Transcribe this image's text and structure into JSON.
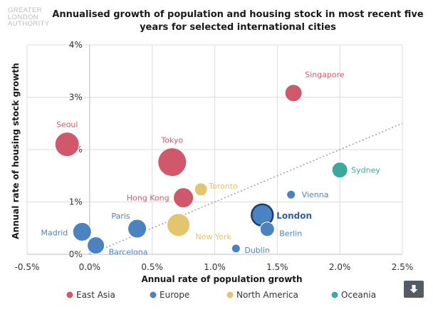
{
  "logo": [
    "GREATER",
    "LONDON",
    "AUTHORITY"
  ],
  "colors": {
    "East Asia": "#d0586b",
    "Europe": "#4b82c2",
    "North America": "#e2c56c",
    "Oceania": "#3aaa9b"
  },
  "chart_data": {
    "type": "scatter",
    "title": "Annualised growth of population and housing stock in most recent five years for selected international cities",
    "xlabel": "Annual rate of population growth",
    "ylabel": "Annual rate of housing stock growth",
    "xlim": [
      -0.5,
      2.5
    ],
    "ylim": [
      0,
      4
    ],
    "xticks": [
      "-0.5%",
      "0.0%",
      "0.5%",
      "1.0%",
      "1.5%",
      "2.0%",
      "2.5%"
    ],
    "yticks": [
      "0%",
      "1%",
      "2%",
      "3%",
      "4%"
    ],
    "grid": true,
    "legend": "bottom",
    "legend_entries": [
      "East Asia",
      "Europe",
      "North America",
      "Oceania"
    ],
    "trend_line": {
      "x": [
        0,
        2.5
      ],
      "y": [
        0,
        2.5
      ]
    },
    "points": [
      {
        "city": "Singapore",
        "x": 1.63,
        "y": 3.08,
        "region": "East Asia",
        "size": 12
      },
      {
        "city": "Seoul",
        "x": -0.18,
        "y": 2.1,
        "region": "East Asia",
        "size": 17
      },
      {
        "city": "Tokyo",
        "x": 0.66,
        "y": 1.76,
        "region": "East Asia",
        "size": 20
      },
      {
        "city": "Hong Kong",
        "x": 0.75,
        "y": 1.08,
        "region": "East Asia",
        "size": 14
      },
      {
        "city": "Toronto",
        "x": 0.89,
        "y": 1.24,
        "region": "North America",
        "size": 9
      },
      {
        "city": "New York",
        "x": 0.71,
        "y": 0.56,
        "region": "North America",
        "size": 16
      },
      {
        "city": "Sydney",
        "x": 2.0,
        "y": 1.61,
        "region": "Oceania",
        "size": 11
      },
      {
        "city": "Vienna",
        "x": 1.61,
        "y": 1.14,
        "region": "Europe",
        "size": 6
      },
      {
        "city": "London",
        "x": 1.38,
        "y": 0.75,
        "region": "Europe",
        "size": 15,
        "highlight": true
      },
      {
        "city": "Berlin",
        "x": 1.42,
        "y": 0.48,
        "region": "Europe",
        "size": 10
      },
      {
        "city": "Dublin",
        "x": 1.17,
        "y": 0.11,
        "region": "Europe",
        "size": 6
      },
      {
        "city": "Madrid",
        "x": -0.06,
        "y": 0.43,
        "region": "Europe",
        "size": 13
      },
      {
        "city": "Barcelona",
        "x": 0.05,
        "y": 0.17,
        "region": "Europe",
        "size": 12
      },
      {
        "city": "Paris",
        "x": 0.38,
        "y": 0.49,
        "region": "Europe",
        "size": 13
      }
    ]
  }
}
